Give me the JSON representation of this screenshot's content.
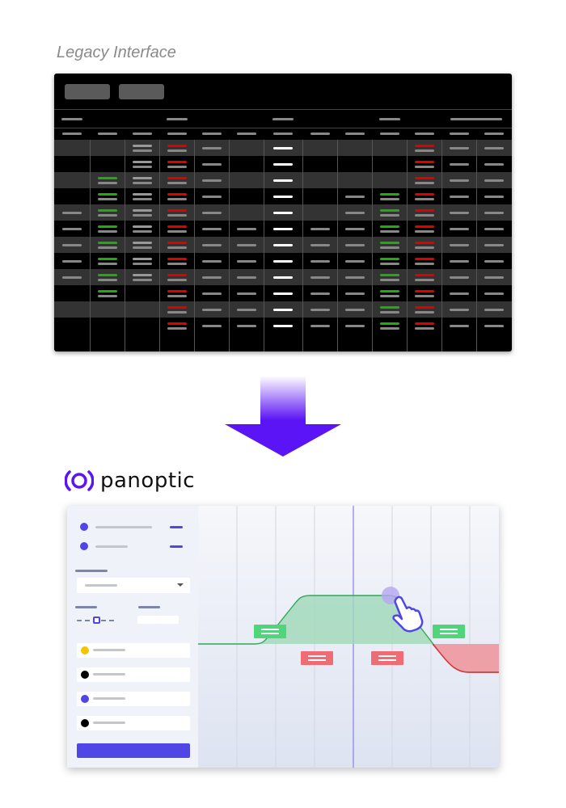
{
  "legacy": {
    "title": "Legacy Interface",
    "background": "#000000",
    "row_alt": "#333333",
    "accent_red": "#e00000",
    "accent_green": "#22aa11"
  },
  "arrow": {
    "color": "#5b14f5",
    "direction": "down"
  },
  "panoptic": {
    "brand": "panoptic",
    "logo_icon": "ring-logo-icon",
    "accent": "#4f46e5",
    "list_dot_colors": [
      "#f5c400",
      "#000000",
      "#4f46e5",
      "#000000"
    ],
    "profit_color": "#2eaa55",
    "loss_color": "#e0303a",
    "cursor_icon": "hand-pointer-icon"
  }
}
